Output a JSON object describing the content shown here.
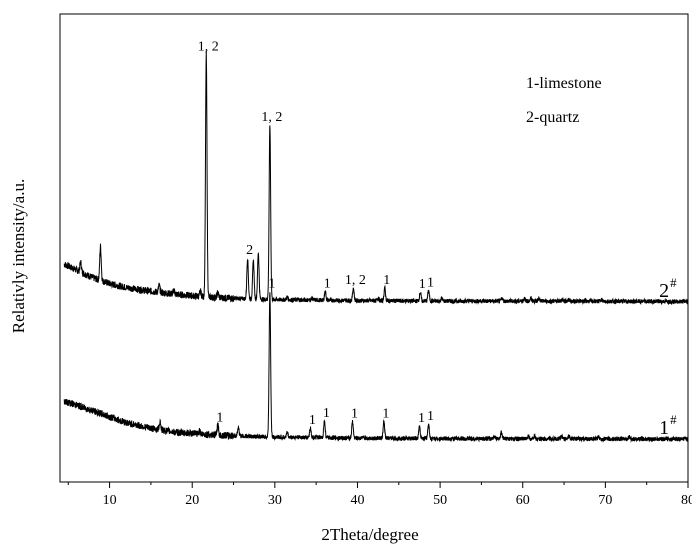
{
  "chart_data": {
    "type": "line",
    "xlabel": "2Theta/degree",
    "ylabel": "Relativly intensity/a.u.",
    "xlim": [
      4,
      80
    ],
    "x_ticks": [
      10,
      20,
      30,
      40,
      50,
      60,
      70,
      80
    ],
    "legend": {
      "placement": "top-right",
      "lines": [
        "1-limestone",
        "2-quartz"
      ]
    },
    "series": [
      {
        "name": "2#",
        "label_main": "2",
        "label_sup": "#",
        "label_at_x": 76.5,
        "offset": 1.0,
        "baseline": [
          [
            4.5,
            0.4
          ],
          [
            6,
            0.34
          ],
          [
            8,
            0.26
          ],
          [
            10,
            0.2
          ],
          [
            12,
            0.16
          ],
          [
            15,
            0.12
          ],
          [
            18,
            0.09
          ],
          [
            22,
            0.06
          ],
          [
            26,
            0.045
          ],
          [
            30,
            0.035
          ],
          [
            40,
            0.025
          ],
          [
            50,
            0.02
          ],
          [
            60,
            0.02
          ],
          [
            80,
            0.015
          ]
        ],
        "peaks": [
          [
            6.5,
            0.1
          ],
          [
            8.9,
            0.35
          ],
          [
            16.0,
            0.07
          ],
          [
            17.8,
            0.04
          ],
          [
            21.0,
            0.05
          ],
          [
            21.7,
            2.5
          ],
          [
            23.1,
            0.05
          ],
          [
            26.7,
            0.42
          ],
          [
            27.4,
            0.4
          ],
          [
            28.0,
            0.48
          ],
          [
            29.4,
            1.8
          ],
          [
            31.5,
            0.03
          ],
          [
            34.5,
            0.02
          ],
          [
            36.1,
            0.09
          ],
          [
            39.5,
            0.13
          ],
          [
            42.5,
            0.03
          ],
          [
            43.3,
            0.13
          ],
          [
            47.6,
            0.09
          ],
          [
            48.6,
            0.11
          ],
          [
            50.2,
            0.03
          ],
          [
            57.5,
            0.03
          ],
          [
            60.2,
            0.03
          ],
          [
            61.0,
            0.03
          ],
          [
            61.9,
            0.03
          ],
          [
            64.8,
            0.02
          ],
          [
            65.6,
            0.02
          ],
          [
            69.5,
            0.02
          ]
        ],
        "annotations": [
          {
            "x": 21.7,
            "text": "1, 2"
          },
          {
            "x": 29.4,
            "text": "1, 2"
          },
          {
            "x": 26.7,
            "text": "2"
          },
          {
            "x": 36.1,
            "text": "1"
          },
          {
            "x": 39.5,
            "text": "1, 2"
          },
          {
            "x": 43.3,
            "text": "1"
          },
          {
            "x": 47.6,
            "text": "1"
          },
          {
            "x": 48.6,
            "text": "1"
          }
        ]
      },
      {
        "name": "1#",
        "label_main": "1",
        "label_sup": "#",
        "label_at_x": 76.5,
        "offset": 0.0,
        "baseline": [
          [
            4.5,
            0.4
          ],
          [
            6,
            0.36
          ],
          [
            8,
            0.3
          ],
          [
            10,
            0.24
          ],
          [
            12,
            0.18
          ],
          [
            15,
            0.12
          ],
          [
            18,
            0.08
          ],
          [
            22,
            0.055
          ],
          [
            26,
            0.04
          ],
          [
            30,
            0.03
          ],
          [
            40,
            0.02
          ],
          [
            50,
            0.015
          ],
          [
            60,
            0.012
          ],
          [
            80,
            0.01
          ]
        ],
        "peaks": [
          [
            16.1,
            0.09
          ],
          [
            20.9,
            0.03
          ],
          [
            23.1,
            0.1
          ],
          [
            25.6,
            0.08
          ],
          [
            29.4,
            1.5
          ],
          [
            31.5,
            0.05
          ],
          [
            34.3,
            0.1
          ],
          [
            36.0,
            0.17
          ],
          [
            39.4,
            0.17
          ],
          [
            43.2,
            0.17
          ],
          [
            47.5,
            0.13
          ],
          [
            48.6,
            0.15
          ],
          [
            56.6,
            0.03
          ],
          [
            57.4,
            0.06
          ],
          [
            60.7,
            0.03
          ],
          [
            61.4,
            0.03
          ],
          [
            64.7,
            0.03
          ],
          [
            65.6,
            0.03
          ],
          [
            69.2,
            0.02
          ],
          [
            72.9,
            0.02
          ]
        ],
        "annotations": [
          {
            "x": 29.4,
            "text": "1"
          },
          {
            "x": 23.1,
            "text": "1"
          },
          {
            "x": 34.3,
            "text": "1"
          },
          {
            "x": 36.0,
            "text": "1"
          },
          {
            "x": 39.4,
            "text": "1"
          },
          {
            "x": 43.2,
            "text": "1"
          },
          {
            "x": 47.5,
            "text": "1"
          },
          {
            "x": 48.6,
            "text": "1"
          }
        ]
      }
    ]
  }
}
